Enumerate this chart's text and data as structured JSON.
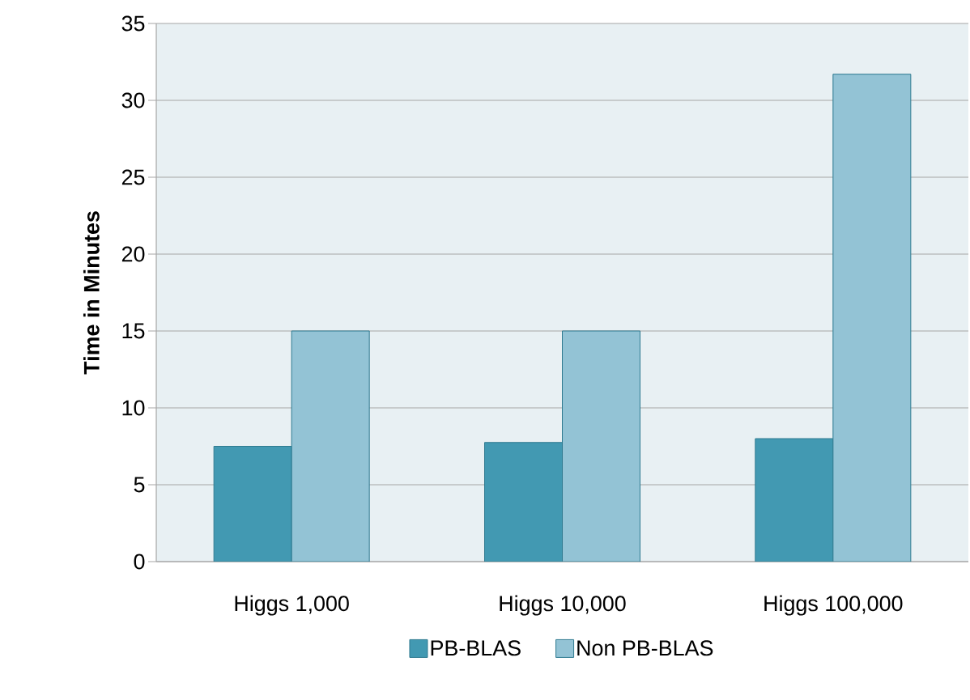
{
  "chart_data": {
    "type": "bar",
    "ylabel": "Time in Minutes",
    "categories": [
      "Higgs 1,000",
      "Higgs 10,000",
      "Higgs 100,000"
    ],
    "series": [
      {
        "name": "PB-BLAS",
        "color": "#4299b2",
        "values": [
          7.5,
          7.75,
          8
        ]
      },
      {
        "name": "Non PB-BLAS",
        "color": "#93c3d5",
        "values": [
          15,
          15,
          31.7
        ]
      }
    ],
    "ylim": [
      0,
      35
    ],
    "yticks": [
      0,
      5,
      10,
      15,
      20,
      25,
      30,
      35
    ],
    "grid": "y",
    "legend": "bottom"
  }
}
